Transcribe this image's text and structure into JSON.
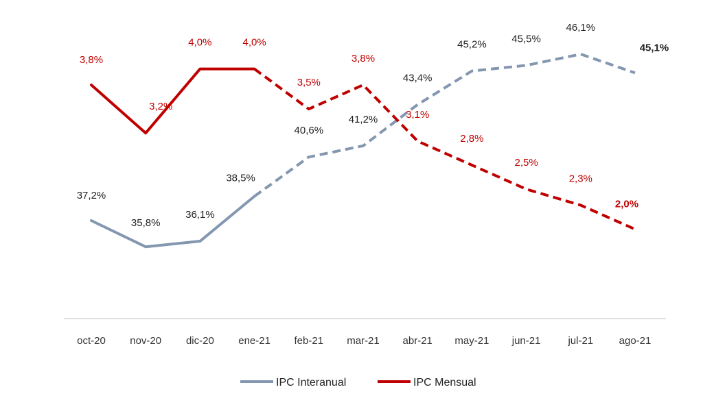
{
  "chart_data": {
    "type": "line",
    "title": "",
    "xlabel": "",
    "ylabel": "",
    "categories": [
      "oct-20",
      "nov-20",
      "dic-20",
      "ene-21",
      "feb-21",
      "mar-21",
      "abr-21",
      "may-21",
      "jun-21",
      "jul-21",
      "ago-21"
    ],
    "series": [
      {
        "name": "IPC Interanual",
        "color": "#8497B0",
        "values": [
          37.2,
          35.8,
          36.1,
          38.5,
          40.6,
          41.2,
          43.4,
          45.2,
          45.5,
          46.1,
          45.1
        ],
        "labels": [
          "37,2%",
          "35,8%",
          "36,1%",
          "38,5%",
          "40,6%",
          "41,2%",
          "43,4%",
          "45,2%",
          "45,5%",
          "46,1%",
          "45,1%"
        ],
        "dashed_from_index": 3,
        "label_color": "#222222"
      },
      {
        "name": "IPC Mensual",
        "color": "#C00000",
        "values": [
          3.8,
          3.2,
          4.0,
          4.0,
          3.5,
          3.8,
          3.1,
          2.8,
          2.5,
          2.3,
          2.0
        ],
        "labels": [
          "3,8%",
          "3,2%",
          "4,0%",
          "4,0%",
          "3,5%",
          "3,8%",
          "3,1%",
          "2,8%",
          "2,5%",
          "2,3%",
          "2,0%"
        ],
        "dashed_from_index": 3,
        "label_color": "#C00000"
      }
    ],
    "legend_position": "bottom-center",
    "grid": false
  }
}
